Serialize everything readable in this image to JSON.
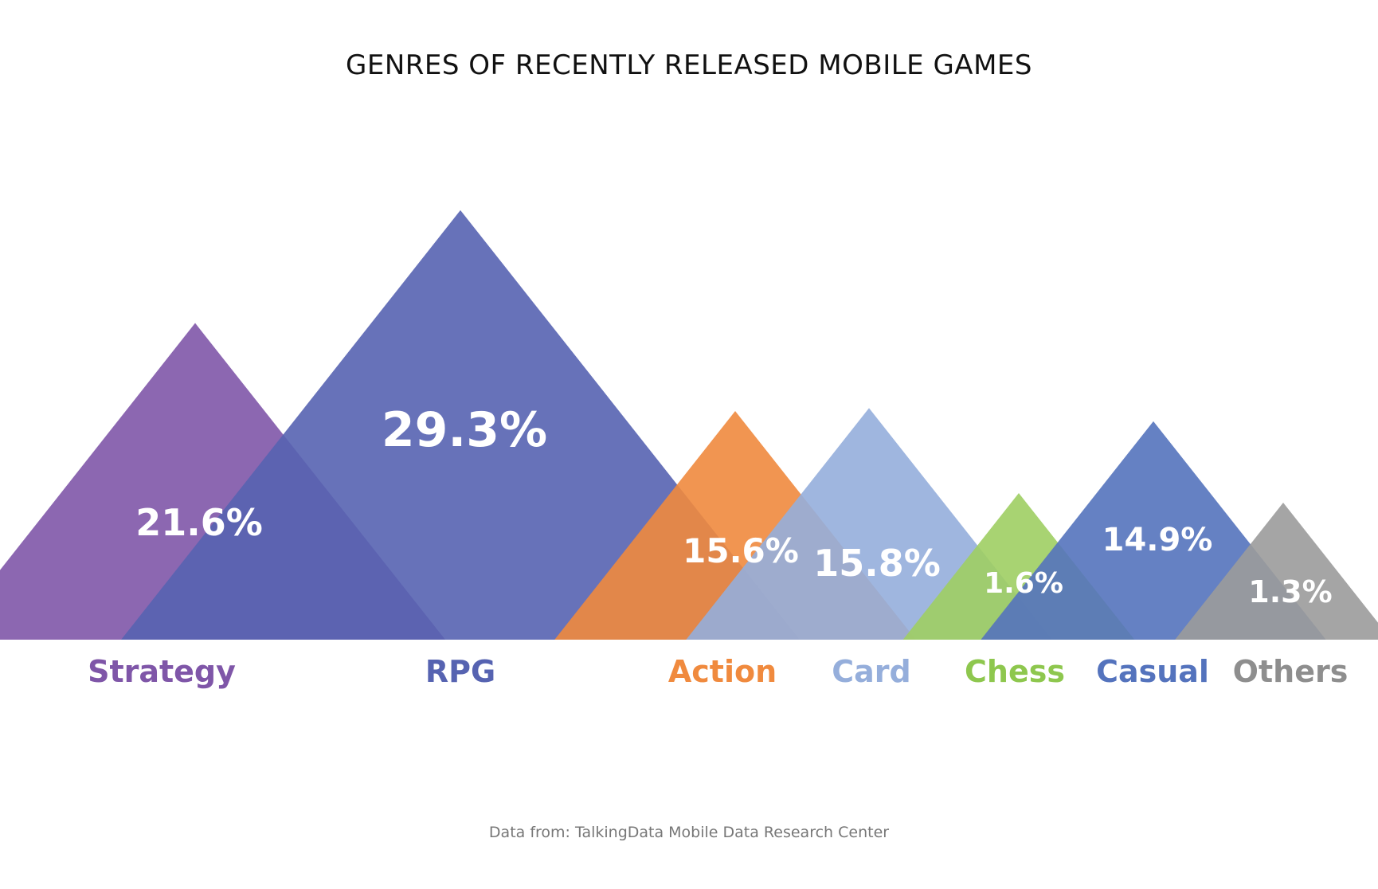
{
  "title": "GENRES OF RECENTLY RELEASED MOBILE GAMES",
  "source": "Data from: TalkingData Mobile Data Research Center",
  "chart_data": {
    "type": "bar",
    "title": "GENRES OF RECENTLY RELEASED MOBILE GAMES",
    "categories": [
      "Strategy",
      "RPG",
      "Action",
      "Card",
      "Chess",
      "Casual",
      "Others"
    ],
    "values": [
      21.6,
      29.3,
      15.6,
      15.8,
      1.6,
      14.9,
      1.3
    ],
    "value_labels": [
      "21.6%",
      "29.3%",
      "15.6%",
      "15.8%",
      "1.6%",
      "14.9%",
      "1.3%"
    ],
    "colors": [
      "#7f56a8",
      "#5663b1",
      "#f08a3e",
      "#95aedb",
      "#9fce63",
      "#5473bd",
      "#9b9b9b"
    ],
    "label_colors": [
      "#7f56a8",
      "#5663b1",
      "#f08a3e",
      "#95aedb",
      "#8ec74e",
      "#5473bd",
      "#8e8e8e"
    ],
    "mark_shape": "triangle",
    "grid": false,
    "legend": "none",
    "xlabel": "",
    "ylabel": ""
  }
}
